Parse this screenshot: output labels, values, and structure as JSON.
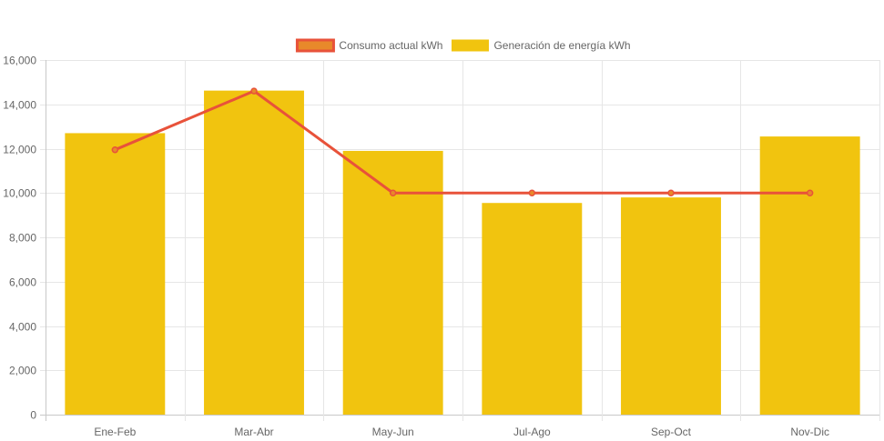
{
  "chart_data": {
    "type": "bar",
    "categories": [
      "Ene-Feb",
      "Mar-Abr",
      "May-Jun",
      "Jul-Ago",
      "Sep-Oct",
      "Nov-Dic"
    ],
    "series": [
      {
        "name": "Consumo actual kWh",
        "type": "line",
        "color": "#e8523a",
        "fill": "#e8892a",
        "values": [
          11950,
          14600,
          10000,
          10000,
          10000,
          10000
        ]
      },
      {
        "name": "Generación de energía kWh",
        "type": "bar",
        "color": "#f1c40f",
        "values": [
          12700,
          14620,
          11900,
          9550,
          9800,
          12550
        ]
      }
    ],
    "y_ticks": [
      "0",
      "2,000",
      "4,000",
      "6,000",
      "8,000",
      "10,000",
      "12,000",
      "14,000",
      "16,000"
    ],
    "ylim": [
      0,
      16000
    ],
    "grid": true,
    "legend_position": "top-center",
    "title": "",
    "xlabel": "",
    "ylabel": ""
  }
}
